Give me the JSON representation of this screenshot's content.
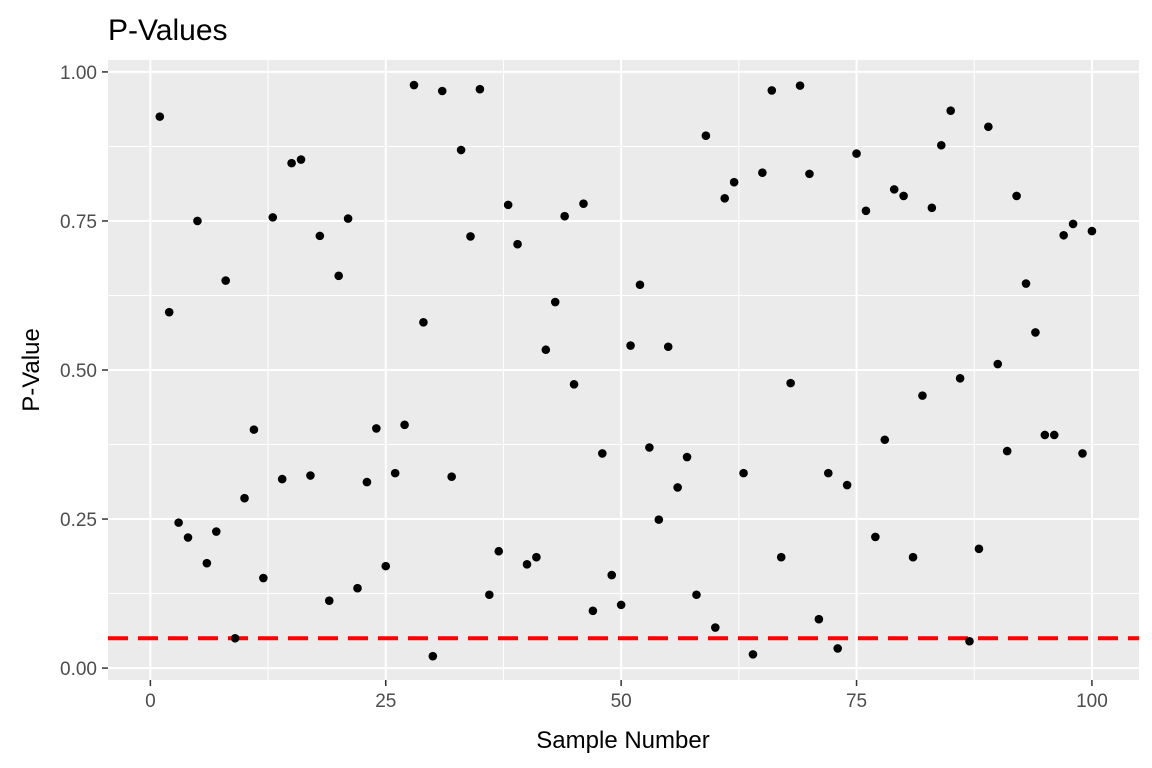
{
  "chart_data": {
    "type": "scatter",
    "title": "P-Values",
    "xlabel": "Sample Number",
    "ylabel": "P-Value",
    "xlim": [
      -4.5,
      105
    ],
    "ylim": [
      -0.02,
      1.02
    ],
    "x_ticks": [
      0,
      25,
      50,
      75,
      100
    ],
    "x_tick_labels": [
      "0",
      "25",
      "50",
      "75",
      "100"
    ],
    "y_ticks": [
      0,
      0.25,
      0.5,
      0.75,
      1
    ],
    "y_tick_labels": [
      "0.00",
      "0.25",
      "0.50",
      "0.75",
      "1.00"
    ],
    "grid": true,
    "point_color": "#000000",
    "panel_background": "#ebebeb",
    "grid_color": "#ffffff",
    "reference_line": {
      "y": 0.05,
      "style": "dashed",
      "color": "#ff0000"
    },
    "x": [
      1,
      2,
      3,
      4,
      5,
      6,
      7,
      8,
      9,
      10,
      11,
      12,
      13,
      14,
      15,
      16,
      17,
      18,
      19,
      20,
      21,
      22,
      23,
      24,
      25,
      26,
      27,
      28,
      29,
      30,
      31,
      32,
      33,
      34,
      35,
      36,
      37,
      38,
      39,
      40,
      41,
      42,
      43,
      44,
      45,
      46,
      47,
      48,
      49,
      50,
      51,
      52,
      53,
      54,
      55,
      56,
      57,
      58,
      59,
      60,
      61,
      62,
      63,
      64,
      65,
      66,
      67,
      68,
      69,
      70,
      71,
      72,
      73,
      74,
      75,
      76,
      77,
      78,
      79,
      80,
      81,
      82,
      83,
      84,
      85,
      86,
      87,
      88,
      89,
      90,
      91,
      92,
      93,
      94,
      95,
      96,
      97,
      98,
      99,
      100
    ],
    "y": [
      0.925,
      0.597,
      0.244,
      0.219,
      0.75,
      0.176,
      0.229,
      0.65,
      0.05,
      0.285,
      0.4,
      0.151,
      0.756,
      0.317,
      0.847,
      0.853,
      0.323,
      0.725,
      0.113,
      0.658,
      0.754,
      0.134,
      0.312,
      0.402,
      0.171,
      0.327,
      0.408,
      0.978,
      0.58,
      0.02,
      0.968,
      0.321,
      0.869,
      0.724,
      0.971,
      0.123,
      0.196,
      0.777,
      0.711,
      0.174,
      0.186,
      0.534,
      0.614,
      0.758,
      0.476,
      0.779,
      0.096,
      0.36,
      0.156,
      0.106,
      0.541,
      0.643,
      0.37,
      0.249,
      0.539,
      0.303,
      0.354,
      0.123,
      0.893,
      0.068,
      0.788,
      0.815,
      0.327,
      0.023,
      0.831,
      0.969,
      0.186,
      0.478,
      0.977,
      0.829,
      0.082,
      0.327,
      0.033,
      0.307,
      0.863,
      0.767,
      0.22,
      0.383,
      0.803,
      0.792,
      0.186,
      0.457,
      0.772,
      0.877,
      0.935,
      0.486,
      0.045,
      0.2,
      0.908,
      0.51,
      0.364,
      0.792,
      0.645,
      0.563,
      0.391,
      0.391,
      0.726,
      0.745,
      0.36,
      0.733
    ]
  }
}
